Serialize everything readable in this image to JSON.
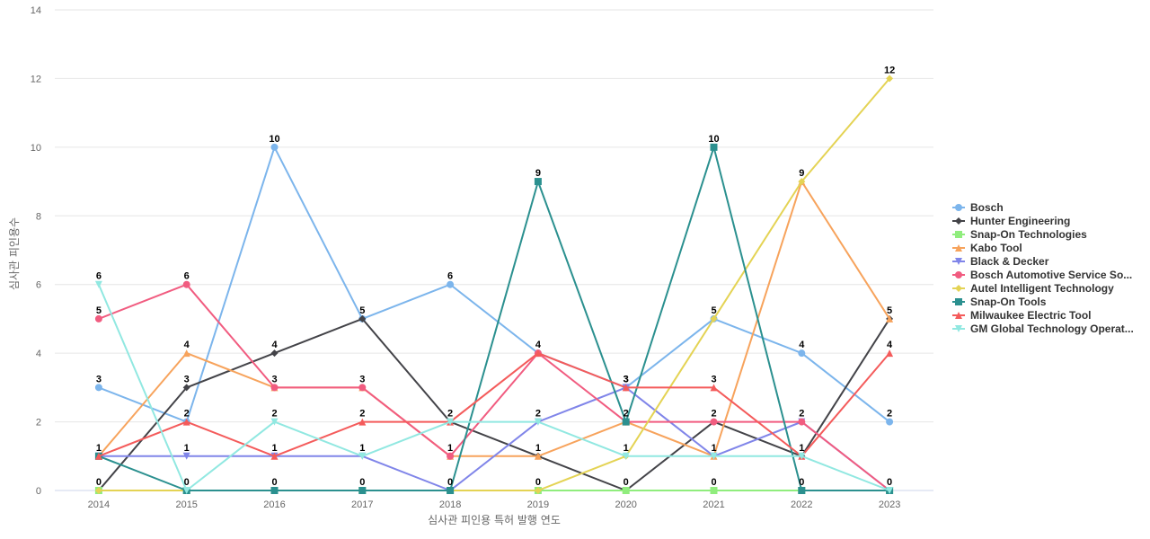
{
  "chart_data": {
    "type": "line",
    "title": "",
    "xlabel": "심사관 피인용 특허 발행 연도",
    "ylabel": "심사관 피인용수",
    "ylim": [
      0,
      14
    ],
    "yticks": [
      0,
      2,
      4,
      6,
      8,
      10,
      12,
      14
    ],
    "grid": "horizontal",
    "legend_position": "right",
    "data_labels": "max-per-category",
    "x": [
      "2014",
      "2015",
      "2016",
      "2017",
      "2018",
      "2019",
      "2020",
      "2021",
      "2022",
      "2023"
    ],
    "series": [
      {
        "name": "Bosch",
        "color": "#7cb5ec",
        "marker": "circle",
        "values": [
          3,
          2,
          10,
          5,
          6,
          4,
          3,
          5,
          4,
          2
        ]
      },
      {
        "name": "Hunter Engineering",
        "color": "#434348",
        "marker": "diamond",
        "values": [
          0,
          3,
          4,
          5,
          2,
          1,
          0,
          2,
          1,
          5
        ]
      },
      {
        "name": "Snap-On Technologies",
        "color": "#90ed7d",
        "marker": "square",
        "values": [
          0,
          0,
          0,
          0,
          0,
          0,
          0,
          0,
          0,
          0
        ]
      },
      {
        "name": "Kabo Tool",
        "color": "#f7a35c",
        "marker": "triangle",
        "values": [
          1,
          4,
          3,
          3,
          1,
          1,
          2,
          1,
          9,
          5
        ]
      },
      {
        "name": "Black & Decker",
        "color": "#8085e9",
        "marker": "triangle-down",
        "values": [
          1,
          1,
          1,
          1,
          0,
          2,
          3,
          1,
          2,
          0
        ]
      },
      {
        "name": "Bosch Automotive Service So...",
        "color": "#f15c80",
        "marker": "circle",
        "values": [
          5,
          6,
          3,
          3,
          1,
          4,
          2,
          2,
          2,
          0
        ]
      },
      {
        "name": "Autel Intelligent Technology",
        "color": "#e4d354",
        "marker": "diamond",
        "values": [
          0,
          0,
          0,
          0,
          0,
          0,
          1,
          5,
          9,
          12
        ]
      },
      {
        "name": "Snap-On Tools",
        "color": "#2b908f",
        "marker": "square",
        "values": [
          1,
          0,
          0,
          0,
          0,
          9,
          2,
          10,
          0,
          0
        ]
      },
      {
        "name": "Milwaukee Electric Tool",
        "color": "#f45b5b",
        "marker": "triangle",
        "values": [
          1,
          2,
          1,
          2,
          2,
          4,
          3,
          3,
          1,
          4
        ]
      },
      {
        "name": "GM Global Technology Operat...",
        "color": "#91e8e1",
        "marker": "triangle-down",
        "values": [
          6,
          0,
          2,
          1,
          2,
          2,
          1,
          1,
          1,
          0
        ]
      }
    ]
  }
}
